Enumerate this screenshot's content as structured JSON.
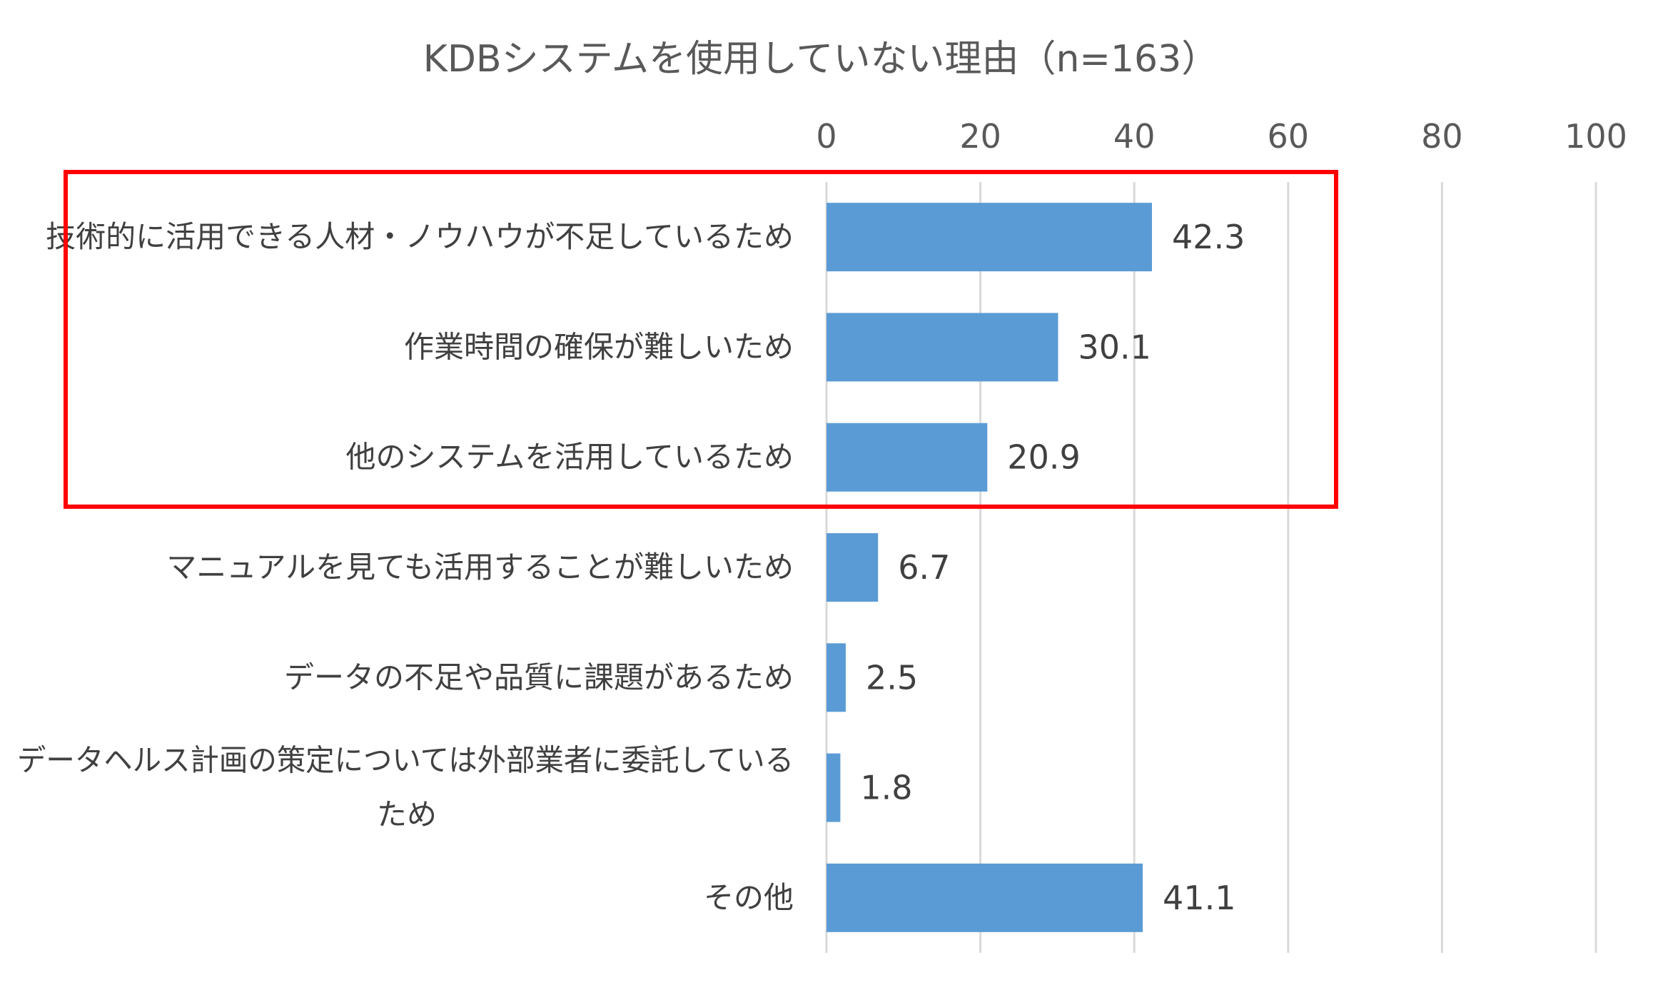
{
  "chart_data": {
    "type": "bar",
    "orientation": "horizontal",
    "title": "KDBシステムを使用していない理由（n=163）",
    "xlabel": "",
    "ylabel": "",
    "xlim": [
      0,
      100
    ],
    "ticks": [
      "0",
      "20",
      "40",
      "60",
      "80",
      "100"
    ],
    "axis_position": "top",
    "grid": true,
    "categories": [
      [
        "技術的に活用できる人材・ノウハウが不足しているため"
      ],
      [
        "作業時間の確保が難しいため"
      ],
      [
        "他のシステムを活用しているため"
      ],
      [
        "マニュアルを見ても活用することが難しいため"
      ],
      [
        "データの不足や品質に課題があるため"
      ],
      [
        "データヘルス計画の策定については外部業者に委託している",
        "ため"
      ],
      [
        "その他"
      ]
    ],
    "values": [
      42.3,
      30.1,
      20.9,
      6.7,
      2.5,
      1.8,
      41.1
    ],
    "value_labels": [
      "42.3",
      "30.1",
      "20.9",
      "6.7",
      "2.5",
      "1.8",
      "41.1"
    ],
    "highlighted_categories": [
      0,
      1,
      2
    ],
    "colors": {
      "bar": "#5b9bd5",
      "highlight": "#ff0000",
      "grid": "#d9d9d9",
      "text": "#404040"
    }
  }
}
